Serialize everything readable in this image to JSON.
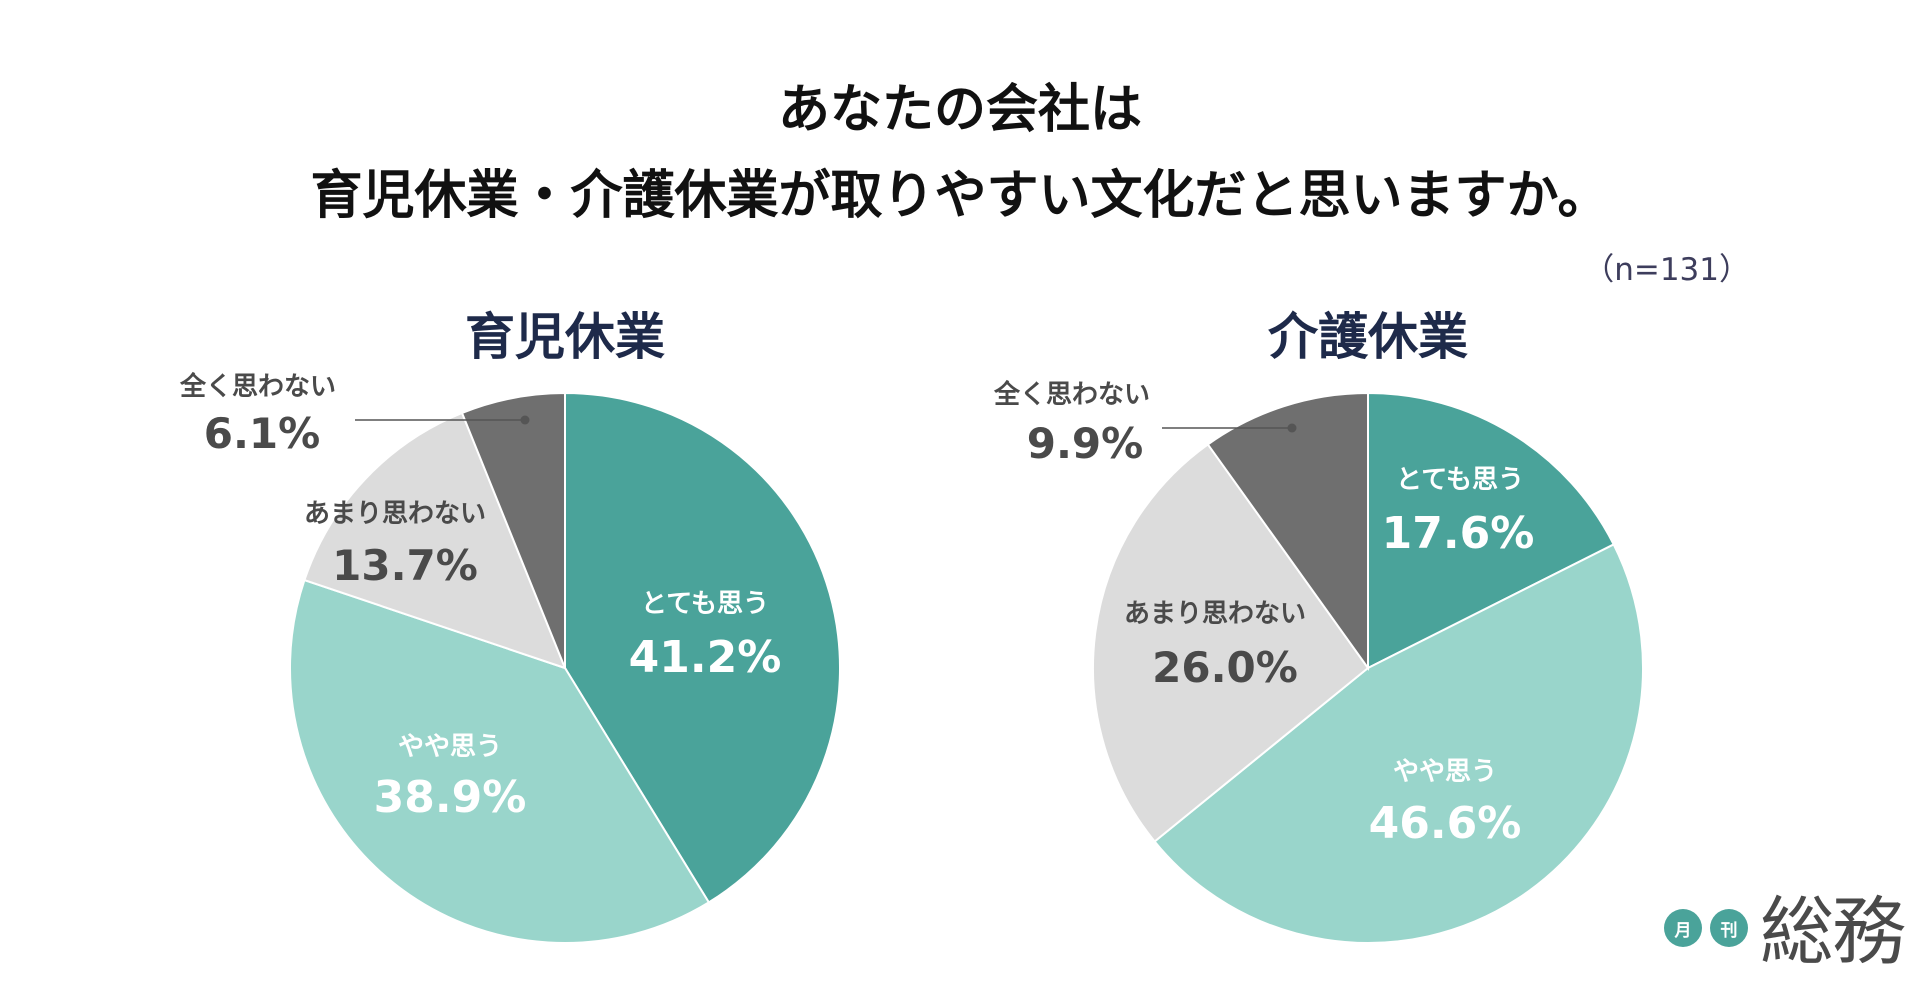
{
  "title": {
    "line1": "あなたの会社は",
    "line2": "育児休業・介護休業が取りやすい文化だと思いますか。"
  },
  "sample_note": "（n=131）",
  "brand": {
    "circle1": "月",
    "circle2": "刊",
    "word": "総務"
  },
  "colors": {
    "very": "#4aa39a",
    "somewhat": "#99d5cb",
    "not_much": "#dcdcdc",
    "not_at_all": "#6f6f6f",
    "label_light": "#ffffff",
    "label_dark": "#4a4a4a"
  },
  "chart_data": [
    {
      "type": "pie",
      "title": "育児休業",
      "categories": [
        "とても思う",
        "やや思う",
        "あまり思わない",
        "全く思わない"
      ],
      "values": [
        41.2,
        38.9,
        13.7,
        6.1
      ],
      "labels": [
        "41.2%",
        "38.9%",
        "13.7%",
        "6.1%"
      ],
      "start": "top",
      "direction": "clockwise"
    },
    {
      "type": "pie",
      "title": "介護休業",
      "categories": [
        "とても思う",
        "やや思う",
        "あまり思わない",
        "全く思わない"
      ],
      "values": [
        17.6,
        46.6,
        26.0,
        9.9
      ],
      "labels": [
        "17.6%",
        "46.6%",
        "26.0%",
        "9.9%"
      ],
      "start": "top",
      "direction": "clockwise"
    }
  ]
}
